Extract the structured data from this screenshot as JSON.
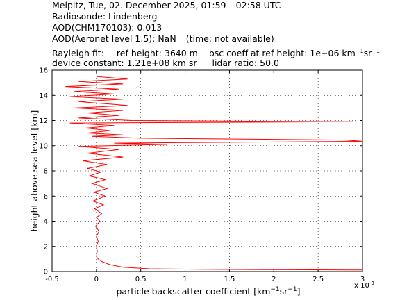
{
  "header": {
    "line1": "Melpitz, Tue, 02. December 2025, 01:59 – 02:58 UTC",
    "line2": "Radiosonde: Lindenberg",
    "line3": "AOD(CHM170103): 0.013",
    "line4a": "AOD(Aeronet level 1.5): NaN",
    "line4b": "(time: not available)",
    "line5a": "Rayleigh fit:",
    "line5b": "ref height: 3640 m",
    "line5c": "bsc coeff at ref height: 1e−06 km",
    "line5_unit_a": "−1",
    "line5_unit_b": "sr",
    "line5_unit_c": "−1",
    "line6a": "device constant: 1.21e+08 km sr",
    "line6b": "lidar ratio: 50.0"
  },
  "chart_data": {
    "type": "line",
    "title": "",
    "xlabel_main": "particle backscatter coefficient [km",
    "xlabel_sup1": "−1",
    "xlabel_mid": "sr",
    "xlabel_sup2": "−1",
    "xlabel_end": "]",
    "ylabel": "height above sea level [km]",
    "x_multiplier": "x 10",
    "x_multiplier_exp": "-3",
    "xlim": [
      -0.5,
      3.0
    ],
    "ylim": [
      0,
      16
    ],
    "xticks": [
      "-0.5",
      "0",
      "0.5",
      "1",
      "1.5",
      "2",
      "2.5",
      "3"
    ],
    "yticks": [
      "0",
      "2",
      "4",
      "6",
      "8",
      "10",
      "12",
      "14",
      "16"
    ],
    "grid": true,
    "series_color": "#ff0000",
    "series": [
      {
        "x_units": "1e-3 km^-1 sr^-1",
        "points": [
          [
            3.0,
            0.12
          ],
          [
            2.0,
            0.15
          ],
          [
            1.2,
            0.18
          ],
          [
            0.6,
            0.22
          ],
          [
            0.3,
            0.35
          ],
          [
            0.15,
            0.55
          ],
          [
            0.06,
            0.8
          ],
          [
            0.02,
            1.0
          ],
          [
            0.0,
            1.2
          ],
          [
            0.01,
            1.6
          ],
          [
            0.0,
            2.0
          ],
          [
            0.02,
            2.4
          ],
          [
            0.0,
            2.8
          ],
          [
            0.03,
            3.2
          ],
          [
            -0.01,
            3.6
          ],
          [
            0.04,
            4.0
          ],
          [
            0.0,
            4.3
          ],
          [
            0.06,
            4.6
          ],
          [
            -0.02,
            5.0
          ],
          [
            0.08,
            5.3
          ],
          [
            -0.04,
            5.6
          ],
          [
            0.1,
            6.0
          ],
          [
            -0.03,
            6.3
          ],
          [
            0.12,
            6.6
          ],
          [
            -0.05,
            7.0
          ],
          [
            0.1,
            7.3
          ],
          [
            -0.08,
            7.6
          ],
          [
            0.05,
            7.9
          ],
          [
            -0.1,
            8.2
          ],
          [
            0.12,
            8.5
          ],
          [
            -0.15,
            8.8
          ],
          [
            0.3,
            9.1
          ],
          [
            -0.1,
            9.4
          ],
          [
            0.25,
            9.7
          ],
          [
            -0.2,
            9.95
          ],
          [
            0.8,
            10.1
          ],
          [
            0.2,
            10.2
          ],
          [
            3.0,
            10.35
          ],
          [
            2.8,
            10.45
          ],
          [
            0.5,
            10.6
          ],
          [
            -0.05,
            10.75
          ],
          [
            0.3,
            10.85
          ],
          [
            -0.1,
            11.0
          ],
          [
            0.15,
            11.2
          ],
          [
            -0.12,
            11.4
          ],
          [
            0.2,
            11.6
          ],
          [
            -0.3,
            11.8
          ],
          [
            2.9,
            11.9
          ],
          [
            0.4,
            12.0
          ],
          [
            -0.2,
            12.2
          ],
          [
            0.25,
            12.4
          ],
          [
            -0.1,
            12.6
          ],
          [
            0.3,
            12.8
          ],
          [
            -0.25,
            13.0
          ],
          [
            0.35,
            13.2
          ],
          [
            -0.2,
            13.5
          ],
          [
            0.3,
            13.7
          ],
          [
            -0.3,
            13.9
          ],
          [
            0.2,
            14.1
          ],
          [
            -0.25,
            14.3
          ],
          [
            0.25,
            14.5
          ],
          [
            -0.35,
            14.7
          ],
          [
            0.3,
            14.9
          ],
          [
            -0.2,
            15.1
          ],
          [
            0.35,
            15.3
          ],
          [
            0.0,
            15.5
          ]
        ]
      }
    ]
  }
}
